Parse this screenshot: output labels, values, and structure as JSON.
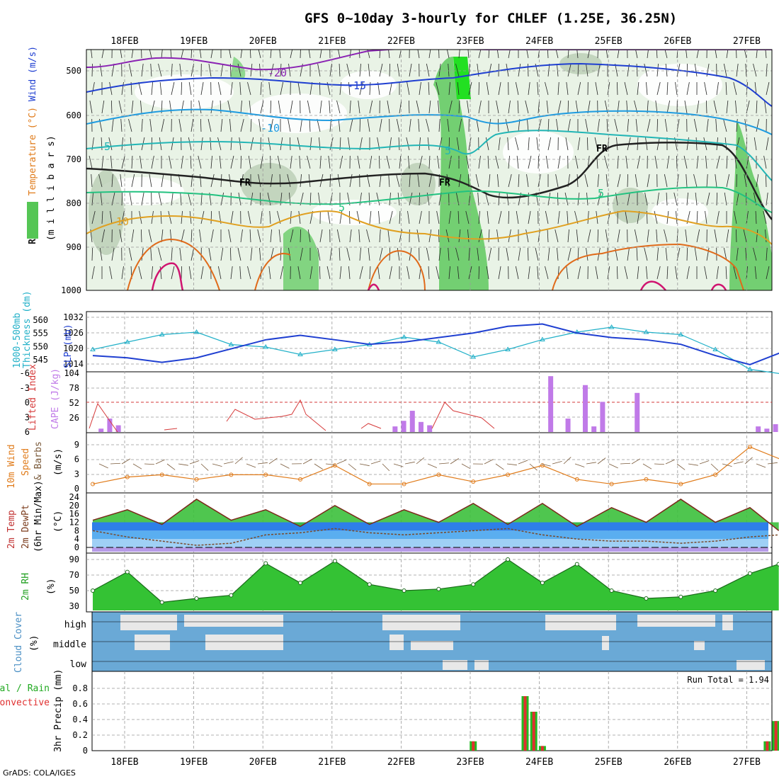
{
  "title": "GFS 0~10day 3-hourly for CHLEF (1.25E, 36.25N)",
  "footer": "GrADS: COLA/IGES",
  "dates": [
    "18FEB",
    "19FEB",
    "20FEB",
    "21FEB",
    "22FEB",
    "23FEB",
    "24FEB",
    "25FEB",
    "26FEB",
    "27FEB"
  ],
  "colors": {
    "rh_green": "#2bbf2b",
    "temp_purple": "#8a2be2",
    "wind_blue": "#1f3fd1",
    "cyan": "#21b0c8",
    "orange": "#e07b1a",
    "cape": "#c07ae8",
    "li": "#d63a3a",
    "cloud": "#6aa9d6",
    "rain_green": "#22bb22",
    "rain_red": "#e03030"
  },
  "panels": {
    "upper": {
      "ylabel_parts": [
        "RH (%)",
        "Temperature (°C)",
        "Wind (m/s)"
      ],
      "ylabel2": "(m i l l i b a r s)",
      "levels": [
        "500",
        "600",
        "700",
        "800",
        "900",
        "1000"
      ],
      "contour_labels": {
        "minus20": "-20",
        "minus15": "-15",
        "minus10": "-10",
        "minus5a": "-5",
        "minus5b": "5",
        "plus5a": "5",
        "plus5b": "5",
        "plus5c": "5",
        "plus10": "10",
        "fr1": "FR",
        "fr2": "FR",
        "fr3": "FR"
      }
    },
    "slp": {
      "left_label_parts": [
        "1000-500mb",
        "Thickness (dm)"
      ],
      "right_label": "SLP (mb)",
      "thick_ticks": [
        "560",
        "555",
        "550",
        "545"
      ],
      "slp_ticks": [
        "1032",
        "1026",
        "1020",
        "1014"
      ]
    },
    "cape": {
      "left_label": "Lifted Index",
      "right_label": "CAPE (J/kg)",
      "li_ticks": [
        "-6",
        "-3",
        "0",
        "3",
        "6"
      ],
      "cape_ticks": [
        "104",
        "78",
        "52",
        "26"
      ]
    },
    "wind10": {
      "label_parts": [
        "10m Wind",
        "Speed",
        "& Barbs"
      ],
      "unit": "(m/s)",
      "ticks": [
        "9",
        "6",
        "3",
        "0"
      ]
    },
    "temp2m": {
      "label_parts": [
        "2m Temp",
        "2m DewPt",
        "(6hr Min/Max)"
      ],
      "unit": "(°C)",
      "ticks": [
        "24",
        "20",
        "16",
        "12",
        "8",
        "4",
        "0"
      ]
    },
    "rh2m": {
      "label": "2m RH",
      "unit": "(%)",
      "ticks": [
        "90",
        "70",
        "50",
        "30"
      ]
    },
    "cloud": {
      "label": "Cloud Cover",
      "unit": "(%)",
      "levels": [
        "high",
        "middle",
        "low"
      ]
    },
    "precip": {
      "label_parts": [
        "Total / Rain",
        "Convective"
      ],
      "ylabel": "3hr Precip (mm)",
      "ticks": [
        "0.8",
        "0.6",
        "0.4",
        "0.2",
        "0"
      ],
      "run_total": "Run Total = 1.94"
    }
  },
  "chart_data": [
    {
      "type": "line",
      "title": "1000-500mb Thickness / SLP",
      "x_hours": [
        0,
        12,
        24,
        36,
        48,
        60,
        72,
        84,
        96,
        108,
        120,
        132,
        144,
        156,
        168,
        180,
        192,
        204,
        216,
        228,
        240
      ],
      "series": [
        {
          "name": "1000-500mb Thickness (dm)",
          "values": [
            549,
            552,
            555,
            556,
            551,
            550,
            547,
            549,
            551,
            554,
            552,
            546,
            549,
            553,
            556,
            558,
            556,
            555,
            549,
            541,
            539
          ]
        },
        {
          "name": "SLP (mb)",
          "values": [
            1017,
            1016,
            1014,
            1016,
            1020,
            1024,
            1026,
            1024,
            1022,
            1023,
            1025,
            1027,
            1030,
            1031,
            1027,
            1025,
            1024,
            1022,
            1017,
            1013,
            1019
          ]
        }
      ],
      "ylim_thickness": [
        542,
        562
      ],
      "ylim_slp": [
        1012,
        1034
      ]
    },
    {
      "type": "bar",
      "title": "CAPE / Lifted Index",
      "x_hours": [
        3,
        6,
        9,
        105,
        108,
        111,
        114,
        117,
        159,
        165,
        171,
        174,
        177,
        189,
        231,
        234,
        237
      ],
      "series": [
        {
          "name": "CAPE (J/kg)",
          "values": [
            6,
            24,
            12,
            10,
            20,
            38,
            18,
            12,
            100,
            24,
            84,
            10,
            54,
            70,
            10,
            6,
            14
          ]
        }
      ],
      "ylim": [
        0,
        104
      ]
    },
    {
      "type": "line",
      "title": "10m Wind Speed",
      "x_hours": [
        0,
        12,
        24,
        36,
        48,
        60,
        72,
        84,
        96,
        108,
        120,
        132,
        144,
        156,
        168,
        180,
        192,
        204,
        216,
        228,
        240
      ],
      "series": [
        {
          "name": "10m Wind Speed (m/s)",
          "values": [
            1,
            2.5,
            3,
            2,
            3,
            3,
            2,
            5,
            1,
            1,
            3,
            1.5,
            3,
            5,
            2,
            1,
            2,
            1,
            3,
            9,
            6
          ]
        }
      ],
      "ylim": [
        0,
        11
      ]
    },
    {
      "type": "area",
      "title": "2m Temp",
      "x_hours": [
        0,
        12,
        24,
        36,
        48,
        60,
        72,
        84,
        96,
        108,
        120,
        132,
        144,
        156,
        168,
        180,
        192,
        204,
        216,
        228,
        238
      ],
      "series": [
        {
          "name": "2m Temp (°C)",
          "values": [
            13,
            18,
            11,
            23,
            13,
            18,
            10,
            20,
            11,
            18,
            12,
            21,
            11,
            21,
            10,
            19,
            12,
            23,
            12,
            19,
            8
          ]
        },
        {
          "name": "2m DewPt (°C)",
          "values": [
            8,
            5,
            3,
            1,
            2,
            6,
            7,
            9,
            7,
            6,
            7,
            8,
            9,
            6,
            4,
            3,
            3,
            2,
            3,
            5,
            6
          ]
        }
      ],
      "ylim": [
        -2,
        26
      ]
    },
    {
      "type": "area",
      "title": "2m RH",
      "x_hours": [
        0,
        12,
        24,
        36,
        48,
        60,
        72,
        84,
        96,
        108,
        120,
        132,
        144,
        156,
        168,
        180,
        192,
        204,
        216,
        228,
        238
      ],
      "series": [
        {
          "name": "2m RH (%)",
          "values": [
            50,
            74,
            35,
            40,
            44,
            85,
            60,
            88,
            58,
            50,
            52,
            58,
            90,
            60,
            84,
            50,
            40,
            42,
            50,
            72,
            84
          ]
        }
      ],
      "ylim": [
        25,
        95
      ]
    },
    {
      "type": "bar",
      "title": "3hr Precip",
      "x_hours": [
        132,
        150,
        153,
        156,
        234,
        237
      ],
      "series": [
        {
          "name": "Total",
          "values": [
            0.12,
            0.7,
            0.5,
            0.06,
            0.12,
            0.38
          ]
        }
      ],
      "ylim": [
        0,
        0.9
      ]
    }
  ]
}
